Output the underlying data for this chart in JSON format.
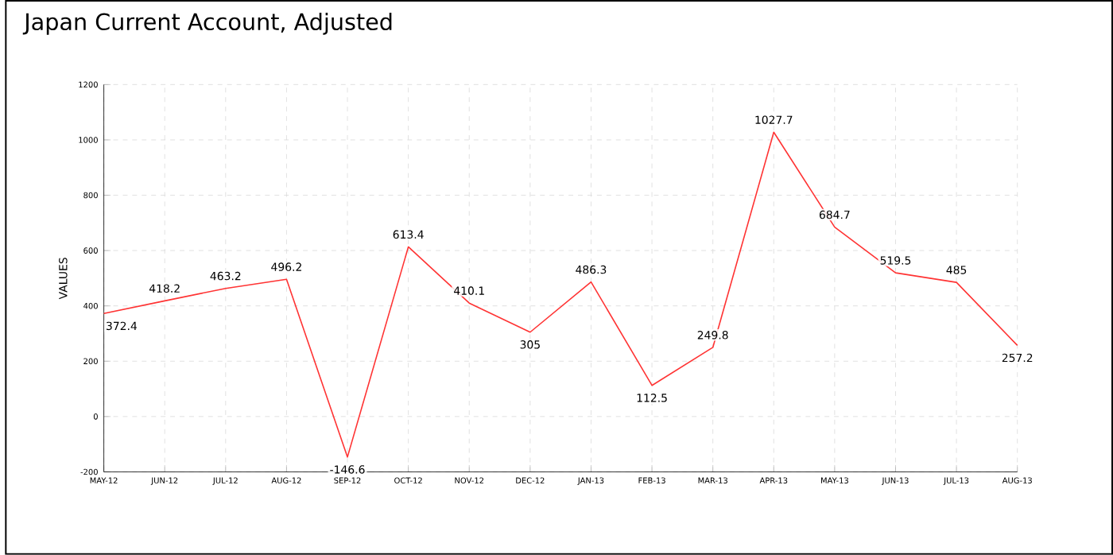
{
  "chart_data": {
    "type": "line",
    "title": "Japan Current Account, Adjusted",
    "ylabel": "VALUES",
    "categories": [
      "MAY-12",
      "JUN-12",
      "JUL-12",
      "AUG-12",
      "SEP-12",
      "OCT-12",
      "NOV-12",
      "DEC-12",
      "JAN-13",
      "FEB-13",
      "MAR-13",
      "APR-13",
      "MAY-13",
      "JUN-13",
      "JUL-13",
      "AUG-13"
    ],
    "values": [
      372.4,
      418.2,
      463.2,
      496.2,
      -146.6,
      613.4,
      410.1,
      305,
      486.3,
      112.5,
      249.8,
      1027.7,
      684.7,
      519.5,
      485,
      257.2
    ],
    "color": "#ff3333",
    "ylim": [
      -200,
      1200
    ],
    "yticks": [
      -200,
      0,
      200,
      400,
      600,
      800,
      1000,
      1200
    ],
    "grid": true,
    "data_labels": true,
    "marker": "none",
    "line_style": "solid"
  }
}
